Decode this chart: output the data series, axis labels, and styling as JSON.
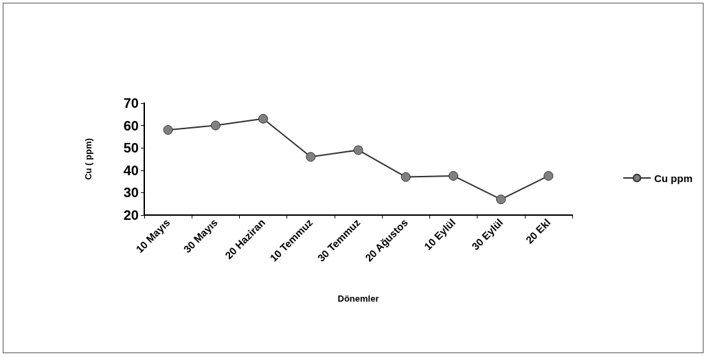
{
  "chart_data": {
    "type": "line",
    "xlabel": "Dönemler",
    "ylabel": "Cu ( ppm)",
    "categories": [
      "10 Mayıs",
      "30 Mayıs",
      "20 Haziran",
      "10 Temmuz",
      "30 Temmuz",
      "20 Ağustos",
      "10 Eylül",
      "30 Eylül",
      "20 Ekl"
    ],
    "series": [
      {
        "name": "Cu ppm",
        "color": "#333333",
        "values": [
          58,
          60,
          63,
          46,
          49,
          37,
          37.5,
          27,
          37.5
        ]
      }
    ],
    "ylim": [
      20,
      70
    ],
    "yticks": [
      20,
      30,
      40,
      50,
      60,
      70
    ],
    "grid": false,
    "legend": "right",
    "marker": "circle",
    "line_style": "solid"
  }
}
